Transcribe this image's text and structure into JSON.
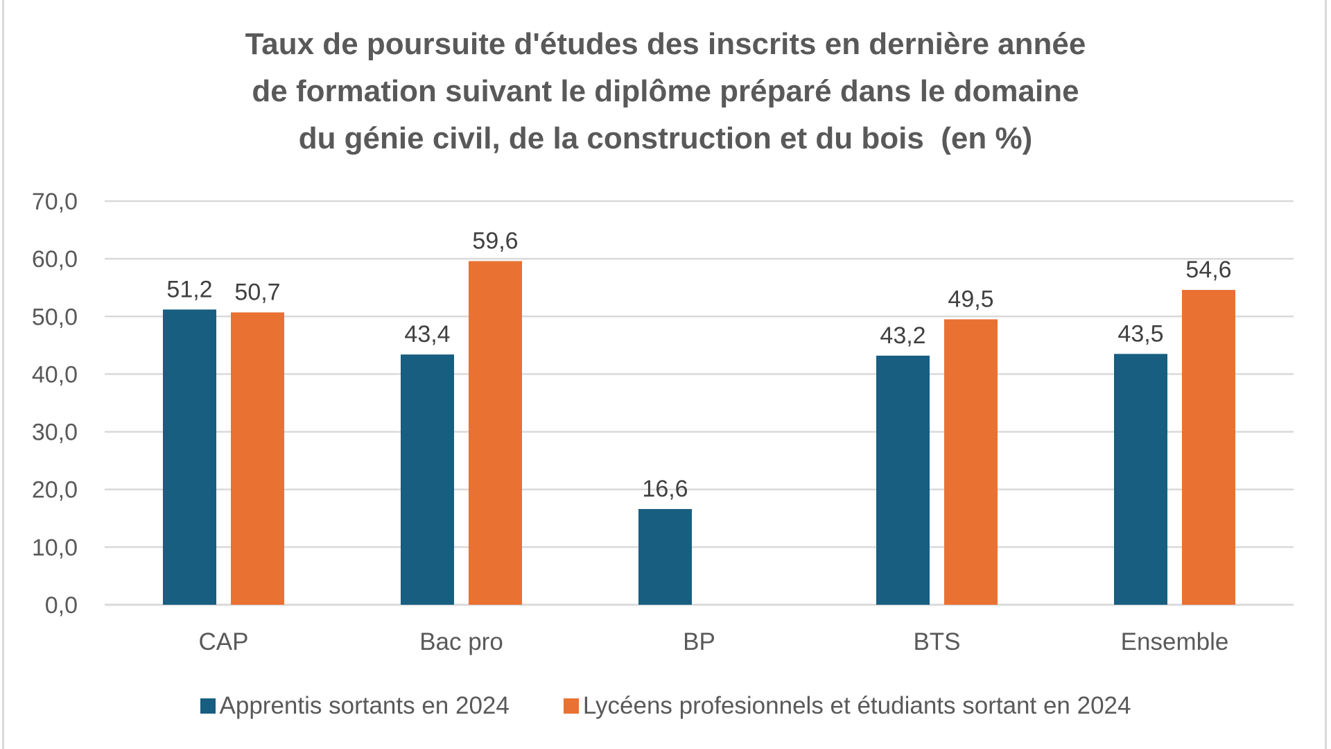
{
  "chart_data": {
    "type": "bar",
    "title_lines": [
      "Taux de poursuite d'études des inscrits en dernière année",
      "de formation suivant le diplôme préparé dans le domaine",
      "du génie civil, de la construction et du bois  (en %)"
    ],
    "xlabel": "",
    "ylabel": "",
    "categories": [
      "CAP",
      "Bac pro",
      "BP",
      "BTS",
      "Ensemble"
    ],
    "series": [
      {
        "name": "Apprentis sortants en 2024",
        "color": "#175E80",
        "values": [
          51.2,
          43.4,
          16.6,
          43.2,
          43.5
        ],
        "labels": [
          "51,2",
          "43,4",
          "16,6",
          "43,2",
          "43,5"
        ]
      },
      {
        "name": "Lycéens profesionnels et étudiants sortant en 2024",
        "color": "#E97132",
        "values": [
          50.7,
          59.6,
          null,
          49.5,
          54.6
        ],
        "labels": [
          "50,7",
          "59,6",
          "",
          "49,5",
          "54,6"
        ]
      }
    ],
    "ylim": [
      0,
      70
    ],
    "yticks": [
      0,
      10,
      20,
      30,
      40,
      50,
      60,
      70
    ],
    "ytick_labels": [
      "0,0",
      "10,0",
      "20,0",
      "30,0",
      "40,0",
      "50,0",
      "60,0",
      "70,0"
    ],
    "grid": true,
    "legend_position": "bottom",
    "text_color": "#595959",
    "grid_color": "#d9d9d9"
  }
}
